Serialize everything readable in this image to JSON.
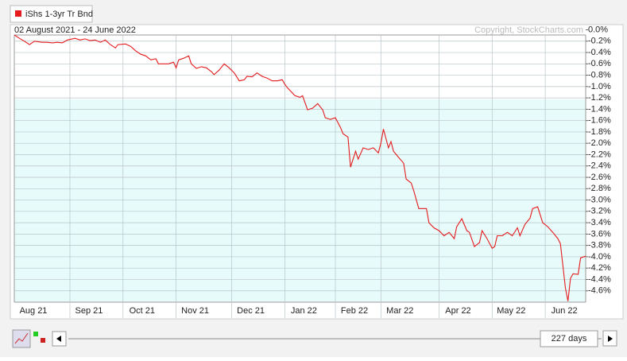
{
  "chart_data": {
    "type": "line",
    "title": "02 August 2021 - 24 June 2022",
    "copyright": "Copyright, StockCharts.com",
    "range_label": "227 days",
    "x": [
      0,
      2,
      4,
      6,
      8,
      11,
      13,
      15,
      17,
      19,
      21,
      24,
      26,
      28,
      30,
      32,
      34,
      36,
      38,
      40,
      41,
      44,
      46,
      48,
      50,
      52,
      54,
      56,
      57,
      59,
      61,
      63,
      64,
      65,
      67,
      69,
      70,
      72,
      74,
      76,
      78,
      79,
      81,
      83,
      85,
      87,
      89,
      91,
      92,
      94,
      96,
      98,
      100,
      102,
      104,
      106,
      107,
      108,
      111,
      113,
      114,
      116,
      118,
      120,
      122,
      123,
      125,
      127,
      129,
      130,
      132,
      133,
      135,
      136,
      138,
      140,
      142,
      144,
      145,
      146,
      148,
      149,
      150,
      152,
      154,
      155,
      157,
      158,
      160,
      162,
      163,
      164,
      166,
      168,
      170,
      172,
      174,
      175,
      177,
      179,
      180,
      182,
      184,
      185,
      187,
      189,
      190,
      191,
      193,
      195,
      197,
      199,
      200,
      202,
      204,
      205,
      207,
      209,
      211,
      213,
      215,
      216,
      218,
      219,
      220,
      221,
      223,
      224,
      226
    ],
    "series": [
      {
        "name": "iShs 1-3yr Tr Bnd",
        "color": "#e41a1c",
        "values": [
          -0.09,
          -0.15,
          -0.2,
          -0.26,
          -0.2,
          -0.22,
          -0.22,
          -0.23,
          -0.22,
          -0.23,
          -0.18,
          -0.15,
          -0.18,
          -0.16,
          -0.19,
          -0.18,
          -0.22,
          -0.18,
          -0.26,
          -0.32,
          -0.26,
          -0.25,
          -0.29,
          -0.37,
          -0.43,
          -0.46,
          -0.53,
          -0.51,
          -0.6,
          -0.6,
          -0.6,
          -0.57,
          -0.67,
          -0.53,
          -0.5,
          -0.46,
          -0.6,
          -0.68,
          -0.65,
          -0.67,
          -0.74,
          -0.79,
          -0.71,
          -0.6,
          -0.67,
          -0.76,
          -0.9,
          -0.88,
          -0.82,
          -0.83,
          -0.76,
          -0.82,
          -0.85,
          -0.9,
          -0.9,
          -0.88,
          -0.96,
          -1.02,
          -1.16,
          -1.19,
          -1.16,
          -1.41,
          -1.38,
          -1.3,
          -1.41,
          -1.55,
          -1.58,
          -1.55,
          -1.72,
          -1.83,
          -1.89,
          -2.42,
          -2.14,
          -2.28,
          -2.08,
          -2.11,
          -2.08,
          -2.17,
          -2.0,
          -1.75,
          -2.08,
          -1.97,
          -2.14,
          -2.25,
          -2.35,
          -2.63,
          -2.7,
          -2.84,
          -3.15,
          -3.15,
          -3.15,
          -3.4,
          -3.49,
          -3.54,
          -3.63,
          -3.57,
          -3.68,
          -3.47,
          -3.33,
          -3.54,
          -3.57,
          -3.82,
          -3.75,
          -3.54,
          -3.68,
          -3.85,
          -3.82,
          -3.63,
          -3.63,
          -3.57,
          -3.63,
          -3.49,
          -3.63,
          -3.43,
          -3.32,
          -3.15,
          -3.12,
          -3.4,
          -3.47,
          -3.57,
          -3.68,
          -3.77,
          -4.55,
          -4.78,
          -4.38,
          -4.3,
          -4.31,
          -4.02,
          -3.99
        ]
      }
    ],
    "xlim": [
      0,
      226
    ],
    "xticks": [
      {
        "value": 0,
        "label": "Aug 21"
      },
      {
        "value": 22,
        "label": "Sep 21"
      },
      {
        "value": 43,
        "label": "Oct 21"
      },
      {
        "value": 64,
        "label": "Nov 21"
      },
      {
        "value": 86,
        "label": "Dec 21"
      },
      {
        "value": 107,
        "label": "Jan 22"
      },
      {
        "value": 127,
        "label": "Feb 22"
      },
      {
        "value": 145,
        "label": "Mar 22"
      },
      {
        "value": 168,
        "label": "Apr 22"
      },
      {
        "value": 189,
        "label": "May 22"
      },
      {
        "value": 210,
        "label": "Jun 22"
      }
    ],
    "ylim": [
      -4.8,
      0
    ],
    "yticks": [
      {
        "value": 0,
        "label": "0.0%"
      },
      {
        "value": -0.2,
        "label": "-0.2%"
      },
      {
        "value": -0.4,
        "label": "-0.4%"
      },
      {
        "value": -0.6,
        "label": "-0.6%"
      },
      {
        "value": -0.8,
        "label": "-0.8%"
      },
      {
        "value": -1.0,
        "label": "-1.0%"
      },
      {
        "value": -1.2,
        "label": "-1.2%"
      },
      {
        "value": -1.4,
        "label": "-1.4%"
      },
      {
        "value": -1.6,
        "label": "-1.6%"
      },
      {
        "value": -1.8,
        "label": "-1.8%"
      },
      {
        "value": -2.0,
        "label": "-2.0%"
      },
      {
        "value": -2.2,
        "label": "-2.2%"
      },
      {
        "value": -2.4,
        "label": "-2.4%"
      },
      {
        "value": -2.6,
        "label": "-2.6%"
      },
      {
        "value": -2.8,
        "label": "-2.8%"
      },
      {
        "value": -3.0,
        "label": "-3.0%"
      },
      {
        "value": -3.2,
        "label": "-3.2%"
      },
      {
        "value": -3.4,
        "label": "-3.4%"
      },
      {
        "value": -3.6,
        "label": "-3.6%"
      },
      {
        "value": -3.8,
        "label": "-3.8%"
      },
      {
        "value": -4.0,
        "label": "-4.0%"
      },
      {
        "value": -4.2,
        "label": "-4.2%"
      },
      {
        "value": -4.4,
        "label": "-4.4%"
      },
      {
        "value": -4.6,
        "label": "-4.6%"
      }
    ],
    "grid": true
  }
}
